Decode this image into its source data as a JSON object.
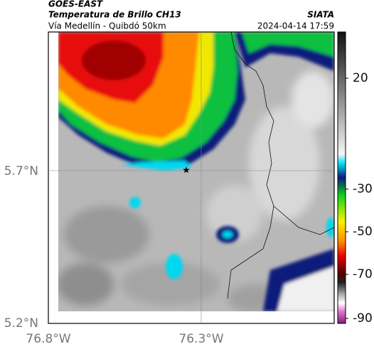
{
  "header": {
    "source": "GOES-EAST",
    "title": "Temperatura de Brillo CH13",
    "subtitle": "Vía Medellín - Quibdó 50km",
    "brand": "SIATA",
    "datetime": "2024-04-14 17:59"
  },
  "axes": {
    "lat_labels": [
      "5.7°N",
      "5.2°N"
    ],
    "lon_labels": [
      "76.8°W",
      "76.3°W"
    ]
  },
  "colorbar": {
    "tick_labels": [
      "20",
      "-30",
      "-50",
      "-70",
      "-90"
    ]
  }
}
